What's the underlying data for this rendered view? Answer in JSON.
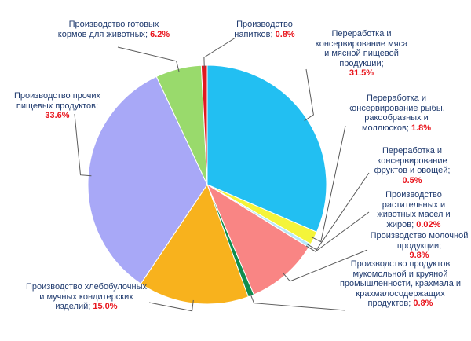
{
  "chart_data": {
    "type": "pie",
    "title": "",
    "slices": [
      {
        "label": "Переработка и консервирование мяса и мясной пищевой продукции;",
        "value": 31.5,
        "display": "31.5%",
        "color": "#22bff2"
      },
      {
        "label": "Переработка и консервирование рыбы, ракообразных и моллюсков;",
        "value": 1.8,
        "display": "1.8%",
        "color": "#f4f43a"
      },
      {
        "label": "Переработка и консервирование фруктов и овощей;",
        "value": 0.5,
        "display": "0.5%",
        "color": "#b6e8fa"
      },
      {
        "label": "Производство растительных и животных масел и жиров;",
        "value": 0.02,
        "display": "0.02%",
        "color": "#7a7a7a"
      },
      {
        "label": "Производство молочной продукции;",
        "value": 9.8,
        "display": "9.8%",
        "color": "#f98584"
      },
      {
        "label": "Производство продуктов мукомольной и круяной промышленности, крахмала и крахмалосодержащих продуктов;",
        "value": 0.8,
        "display": "0.8%",
        "color": "#0e8d4e"
      },
      {
        "label": "Производство хлебобулочных и мучных кондитерских изделий;",
        "value": 15.0,
        "display": "15.0%",
        "color": "#f8b21d"
      },
      {
        "label": "Производство прочих пищевых продуктов;",
        "value": 33.6,
        "display": "33.6%",
        "color": "#a8a8f7"
      },
      {
        "label": "Производство готовых кормов для животных;",
        "value": 6.2,
        "display": "6.2%",
        "color": "#99da6c"
      },
      {
        "label": "Производство напитков;",
        "value": 0.8,
        "display": "0.8%",
        "color": "#e11820"
      }
    ]
  }
}
